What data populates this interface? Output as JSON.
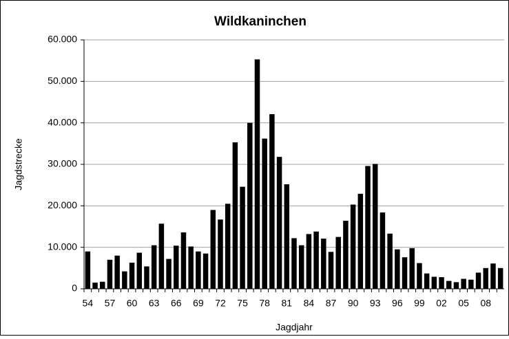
{
  "chart_data": {
    "type": "bar",
    "title": "Wildkaninchen",
    "x_label": "Jagdjahr",
    "y_label": "Jagdstrecke",
    "categories": [
      "54",
      null,
      null,
      "57",
      null,
      null,
      "60",
      null,
      null,
      "63",
      null,
      null,
      "66",
      null,
      null,
      "69",
      null,
      null,
      "72",
      null,
      null,
      "75",
      null,
      null,
      "78",
      null,
      null,
      "81",
      null,
      null,
      "84",
      null,
      null,
      "87",
      null,
      null,
      "90",
      null,
      null,
      "93",
      null,
      null,
      "96",
      null,
      null,
      "99",
      null,
      null,
      "02",
      null,
      null,
      "05",
      null,
      null,
      "08",
      null,
      null
    ],
    "values": [
      9000,
      1500,
      1700,
      7000,
      8000,
      4200,
      6300,
      8700,
      5400,
      10500,
      15700,
      7200,
      10400,
      13600,
      10200,
      9000,
      8500,
      19000,
      16700,
      20500,
      35300,
      24600,
      40000,
      55300,
      36200,
      42100,
      31800,
      25200,
      12200,
      10500,
      13200,
      13800,
      12100,
      8900,
      12500,
      16400,
      20300,
      22900,
      29600,
      30100,
      18400,
      13300,
      9500,
      7600,
      9800,
      6200,
      3700,
      2900,
      2800,
      1900,
      1600,
      2400,
      2200,
      3900,
      5000,
      6100,
      5000
    ],
    "color": "#000000",
    "ylim": [
      0,
      60000
    ],
    "yticks": [
      0,
      {
        "value": 10000,
        "label": "10.000"
      },
      {
        "value": 20000,
        "label": "20.000"
      },
      {
        "value": 30000,
        "label": "30.000"
      },
      {
        "value": 40000,
        "label": "40.000"
      },
      {
        "value": 50000,
        "label": "50.000"
      },
      {
        "value": 60000,
        "label": "60.000"
      }
    ],
    "grid": true
  }
}
